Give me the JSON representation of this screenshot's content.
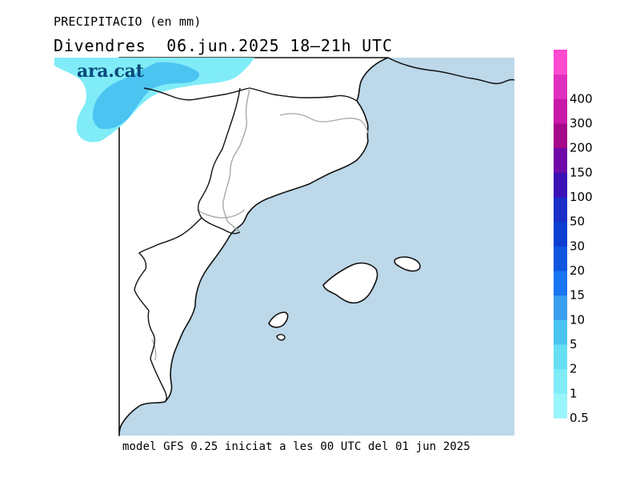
{
  "header": {
    "variable": "PRECIPITACIO (en mm)",
    "day": "Divendres",
    "date": "06.jun.2025",
    "time_range": "18–21h UTC"
  },
  "brand": {
    "logo_text": "ara.cat",
    "logo_color": "#0b4a79"
  },
  "footer": {
    "model_text": "model GFS 0.25 iniciat a les 00 UTC del 01 jun 2025"
  },
  "legend": {
    "unit": "mm",
    "levels": [
      {
        "label": "0.5",
        "color": "#98f5fb"
      },
      {
        "label": "1",
        "color": "#80ecf8"
      },
      {
        "label": "2",
        "color": "#66dff3"
      },
      {
        "label": "5",
        "color": "#4cc4f2"
      },
      {
        "label": "10",
        "color": "#3a9ff0"
      },
      {
        "label": "15",
        "color": "#1a75f2"
      },
      {
        "label": "20",
        "color": "#1156df"
      },
      {
        "label": "30",
        "color": "#0c3fd0"
      },
      {
        "label": "50",
        "color": "#1a2fc8"
      },
      {
        "label": "100",
        "color": "#3a12b5"
      },
      {
        "label": "150",
        "color": "#6d0aa8"
      },
      {
        "label": "200",
        "color": "#a50a8a"
      },
      {
        "label": "300",
        "color": "#c81aa6"
      },
      {
        "label": "400",
        "color": "#e030c0"
      },
      {
        "label": "",
        "color": "#ff4bd0"
      }
    ]
  },
  "map": {
    "sea_color": "#bcd8e9",
    "land_color": "#ffffff",
    "coast_color": "#111111",
    "border_color": "#a8a8a8",
    "precip_light_color": "#80ecf8",
    "precip_mid_color": "#4cc4f2"
  }
}
